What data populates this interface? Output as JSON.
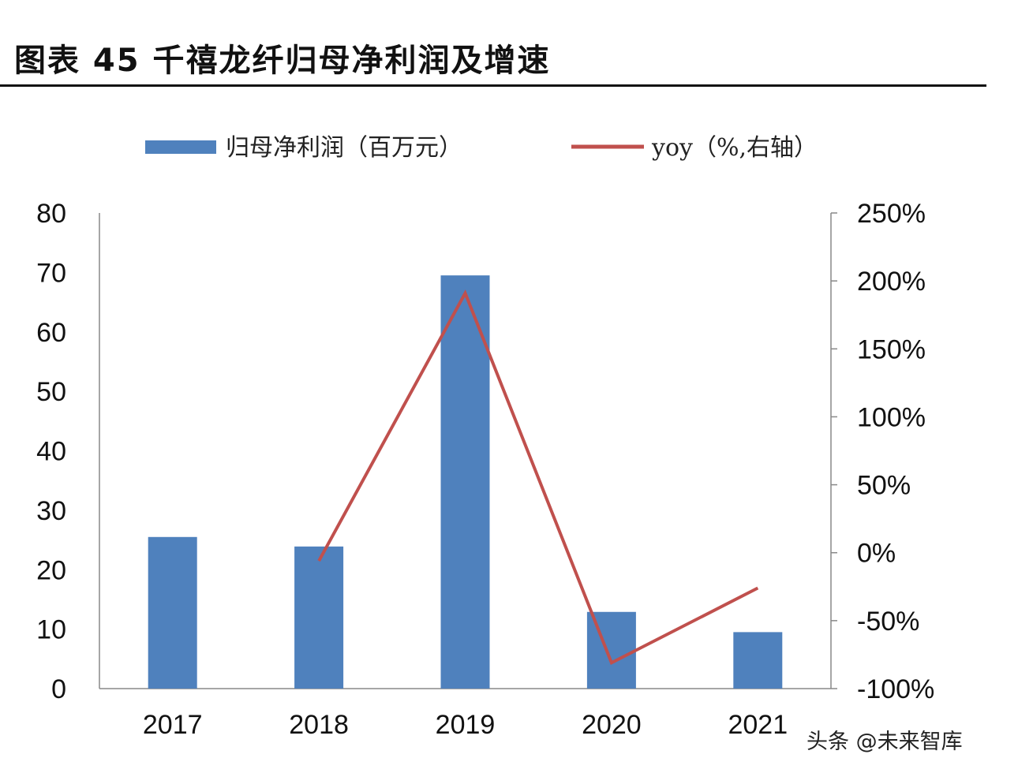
{
  "title": "图表 45  千禧龙纤归母净利润及增速",
  "watermark": "头条 @未来智库",
  "chart_data": {
    "type": "bar+line",
    "title": "图表 45  千禧龙纤归母净利润及增速",
    "categories": [
      "2017",
      "2018",
      "2019",
      "2020",
      "2021"
    ],
    "series": [
      {
        "name": "归母净利润（百万元）",
        "type": "bar",
        "axis": "left",
        "color": "#4F81BD",
        "values": [
          25.5,
          23.9,
          69.5,
          12.9,
          9.5
        ]
      },
      {
        "name": "yoy（%,右轴）",
        "type": "line",
        "axis": "right",
        "color": "#C0504D",
        "values": [
          null,
          -6,
          191,
          -81,
          -26
        ]
      }
    ],
    "y_left": {
      "min": 0,
      "max": 80,
      "ticks": [
        "0",
        "10",
        "20",
        "30",
        "40",
        "50",
        "60",
        "70",
        "80"
      ]
    },
    "y_right": {
      "min": -100,
      "max": 250,
      "ticks": [
        "-100%",
        "-50%",
        "0%",
        "50%",
        "100%",
        "150%",
        "200%",
        "250%"
      ]
    },
    "legend_position": "top",
    "grid": false
  }
}
